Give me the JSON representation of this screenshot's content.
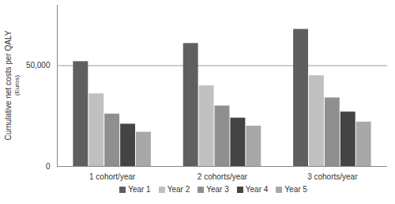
{
  "chart_data": {
    "type": "bar",
    "y_label": "Cumulative net costs per QALY\n(Euros)",
    "categories": [
      "1 cohort/year",
      "2 cohorts/year",
      "3 cohorts/year"
    ],
    "series": [
      {
        "name": "Year 1",
        "color": "#5f5f5f",
        "values": [
          52000,
          61000,
          68000
        ]
      },
      {
        "name": "Year 2",
        "color": "#c0c0c0",
        "values": [
          36000,
          40000,
          45000
        ]
      },
      {
        "name": "Year 3",
        "color": "#8f8f8f",
        "values": [
          26000,
          30000,
          34000
        ]
      },
      {
        "name": "Year 4",
        "color": "#444444",
        "values": [
          21000,
          24000,
          27000
        ]
      },
      {
        "name": "Year 5",
        "color": "#a8a8a8",
        "values": [
          17000,
          20000,
          22000
        ]
      }
    ],
    "ylim": [
      0,
      80000
    ],
    "yticks": [
      0,
      {
        "value": 50000,
        "label": "50,000"
      }
    ],
    "grid": true,
    "legend": "bottom"
  }
}
